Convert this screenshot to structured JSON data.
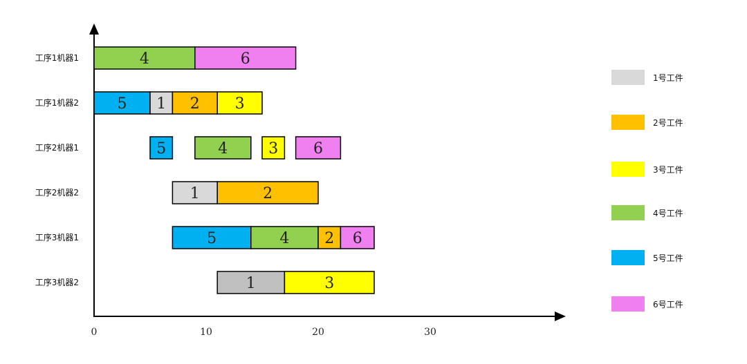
{
  "chart_data": {
    "type": "gantt",
    "x_ticks": [
      0,
      10,
      20,
      30
    ],
    "xlim": [
      0,
      42
    ],
    "rows": [
      {
        "label": "工序1机器1",
        "tasks": [
          {
            "job": 4,
            "start": 0,
            "end": 9
          },
          {
            "job": 6,
            "start": 9,
            "end": 18
          }
        ]
      },
      {
        "label": "工序1机器2",
        "tasks": [
          {
            "job": 5,
            "start": 0,
            "end": 5
          },
          {
            "job": 1,
            "start": 5,
            "end": 7
          },
          {
            "job": 2,
            "start": 7,
            "end": 11
          },
          {
            "job": 3,
            "start": 11,
            "end": 15
          }
        ]
      },
      {
        "label": "工序2机器1",
        "tasks": [
          {
            "job": 5,
            "start": 5,
            "end": 7
          },
          {
            "job": 4,
            "start": 9,
            "end": 14
          },
          {
            "job": 3,
            "start": 15,
            "end": 17
          },
          {
            "job": 6,
            "start": 18,
            "end": 22
          }
        ]
      },
      {
        "label": "工序2机器2",
        "tasks": [
          {
            "job": 1,
            "start": 7,
            "end": 11
          },
          {
            "job": 2,
            "start": 11,
            "end": 20
          }
        ]
      },
      {
        "label": "工序3机器1",
        "tasks": [
          {
            "job": 5,
            "start": 7,
            "end": 14
          },
          {
            "job": 4,
            "start": 14,
            "end": 20
          },
          {
            "job": 2,
            "start": 20,
            "end": 22
          },
          {
            "job": 6,
            "start": 22,
            "end": 25
          }
        ]
      },
      {
        "label": "工序3机器2",
        "tasks": [
          {
            "job": 1,
            "start": 11,
            "end": 17,
            "color": "#c0c0c0"
          },
          {
            "job": 3,
            "start": 17,
            "end": 25
          }
        ]
      }
    ],
    "legend": [
      {
        "job": 1,
        "label": "1号工件",
        "color": "#d9d9d9"
      },
      {
        "job": 2,
        "label": "2号工件",
        "color": "#ffc000"
      },
      {
        "job": 3,
        "label": "3号工件",
        "color": "#ffff00"
      },
      {
        "job": 4,
        "label": "4号工件",
        "color": "#92d050"
      },
      {
        "job": 5,
        "label": "5号工件",
        "color": "#00b0f0"
      },
      {
        "job": 6,
        "label": "6号工件",
        "color": "#f07ff0"
      }
    ],
    "legend_position": "right",
    "grid": false
  }
}
